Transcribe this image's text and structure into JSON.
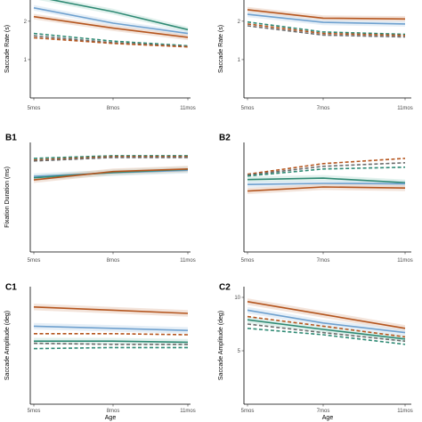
{
  "colors": {
    "orange": "#b5561f",
    "blue": "#6fa1cf",
    "green": "#2f8a74",
    "gray": "#6c6c6c",
    "ribbon_orange": "#e9cdbd",
    "ribbon_blue": "#d2e2f0",
    "ribbon_green": "#c8e6de"
  },
  "chart_data": [
    {
      "panel": "A1",
      "type": "line",
      "panel_label": "",
      "ylabel": "Saccade Rate (s)",
      "xlabel": "",
      "x": [
        "5mos",
        "8mos",
        "11mos"
      ],
      "ylim": [
        0,
        2.6
      ],
      "yticks": [
        1,
        2
      ],
      "series": [
        {
          "color": "green",
          "dash": false,
          "values": [
            2.65,
            2.25,
            1.78
          ]
        },
        {
          "color": "blue",
          "dash": false,
          "values": [
            2.35,
            1.95,
            1.68
          ]
        },
        {
          "color": "orange",
          "dash": false,
          "values": [
            2.12,
            1.82,
            1.58
          ]
        },
        {
          "color": "green",
          "dash": true,
          "values": [
            1.68,
            1.48,
            1.36
          ]
        },
        {
          "color": "gray",
          "dash": true,
          "values": [
            1.62,
            1.44,
            1.34
          ]
        },
        {
          "color": "orange",
          "dash": true,
          "values": [
            1.57,
            1.42,
            1.33
          ]
        }
      ]
    },
    {
      "panel": "A2",
      "type": "line",
      "panel_label": "",
      "ylabel": "Saccade Rate (s)",
      "xlabel": "",
      "x": [
        "5mos",
        "7mos",
        "11mos"
      ],
      "ylim": [
        0,
        2.6
      ],
      "yticks": [
        1,
        2
      ],
      "series": [
        {
          "color": "orange",
          "dash": false,
          "values": [
            2.3,
            2.08,
            2.06
          ]
        },
        {
          "color": "blue",
          "dash": false,
          "values": [
            2.18,
            1.97,
            1.93
          ]
        },
        {
          "color": "green",
          "dash": true,
          "values": [
            1.98,
            1.72,
            1.66
          ]
        },
        {
          "color": "orange",
          "dash": true,
          "values": [
            1.93,
            1.68,
            1.63
          ]
        },
        {
          "color": "gray",
          "dash": true,
          "values": [
            1.88,
            1.64,
            1.59
          ]
        }
      ]
    },
    {
      "panel": "B1",
      "type": "line",
      "panel_label": "B1",
      "ylabel": "Fixation Duration (ms)",
      "xlabel": "",
      "x": [
        "5mos",
        "8mos",
        "11mos"
      ],
      "ylim": [
        0,
        620
      ],
      "yticks": [],
      "series": [
        {
          "color": "green",
          "dash": true,
          "values": [
            530,
            545,
            545
          ]
        },
        {
          "color": "orange",
          "dash": true,
          "values": [
            520,
            540,
            540
          ]
        },
        {
          "color": "gray",
          "dash": true,
          "values": [
            515,
            535,
            535
          ]
        },
        {
          "color": "blue",
          "dash": false,
          "values": [
            428,
            448,
            462
          ]
        },
        {
          "color": "green",
          "dash": false,
          "values": [
            420,
            450,
            468
          ]
        },
        {
          "color": "orange",
          "dash": false,
          "values": [
            408,
            455,
            470
          ]
        }
      ]
    },
    {
      "panel": "B2",
      "type": "line",
      "panel_label": "B2",
      "ylabel": "",
      "xlabel": "",
      "x": [
        "5mos",
        "7mos",
        "11mos"
      ],
      "ylim": [
        0,
        620
      ],
      "yticks": [],
      "series": [
        {
          "color": "orange",
          "dash": true,
          "values": [
            440,
            500,
            530
          ]
        },
        {
          "color": "gray",
          "dash": true,
          "values": [
            435,
            485,
            505
          ]
        },
        {
          "color": "green",
          "dash": true,
          "values": [
            430,
            470,
            480
          ]
        },
        {
          "color": "green",
          "dash": false,
          "values": [
            410,
            418,
            392
          ]
        },
        {
          "color": "blue",
          "dash": false,
          "values": [
            382,
            388,
            386
          ]
        },
        {
          "color": "orange",
          "dash": false,
          "values": [
            345,
            368,
            362
          ]
        }
      ]
    },
    {
      "panel": "C1",
      "type": "line",
      "panel_label": "C1",
      "ylabel": "Saccade Amplitude (deg)",
      "xlabel": "Age",
      "x": [
        "5mos",
        "8mos",
        "11mos"
      ],
      "ylim": [
        0,
        11
      ],
      "yticks": [],
      "series": [
        {
          "color": "orange",
          "dash": false,
          "values": [
            9.1,
            8.8,
            8.5
          ]
        },
        {
          "color": "blue",
          "dash": false,
          "values": [
            7.3,
            7.1,
            6.9
          ]
        },
        {
          "color": "orange",
          "dash": true,
          "values": [
            6.6,
            6.6,
            6.5
          ]
        },
        {
          "color": "green",
          "dash": false,
          "values": [
            5.9,
            5.9,
            5.8
          ]
        },
        {
          "color": "gray",
          "dash": true,
          "values": [
            5.7,
            5.6,
            5.6
          ]
        },
        {
          "color": "green",
          "dash": true,
          "values": [
            5.2,
            5.3,
            5.3
          ]
        }
      ]
    },
    {
      "panel": "C2",
      "type": "line",
      "panel_label": "C2",
      "ylabel": "Saccade Amplitude (deg)",
      "xlabel": "Age",
      "x": [
        "5mos",
        "7mos",
        "11mos"
      ],
      "ylim": [
        0,
        11
      ],
      "yticks": [
        5,
        10
      ],
      "series": [
        {
          "color": "orange",
          "dash": false,
          "values": [
            9.6,
            8.4,
            7.1
          ]
        },
        {
          "color": "blue",
          "dash": false,
          "values": [
            8.8,
            7.6,
            6.7
          ]
        },
        {
          "color": "orange",
          "dash": true,
          "values": [
            8.2,
            7.3,
            6.3
          ]
        },
        {
          "color": "green",
          "dash": false,
          "values": [
            7.9,
            7.0,
            6.1
          ]
        },
        {
          "color": "gray",
          "dash": true,
          "values": [
            7.5,
            6.7,
            5.9
          ]
        },
        {
          "color": "green",
          "dash": true,
          "values": [
            7.1,
            6.5,
            5.6
          ]
        }
      ]
    }
  ]
}
